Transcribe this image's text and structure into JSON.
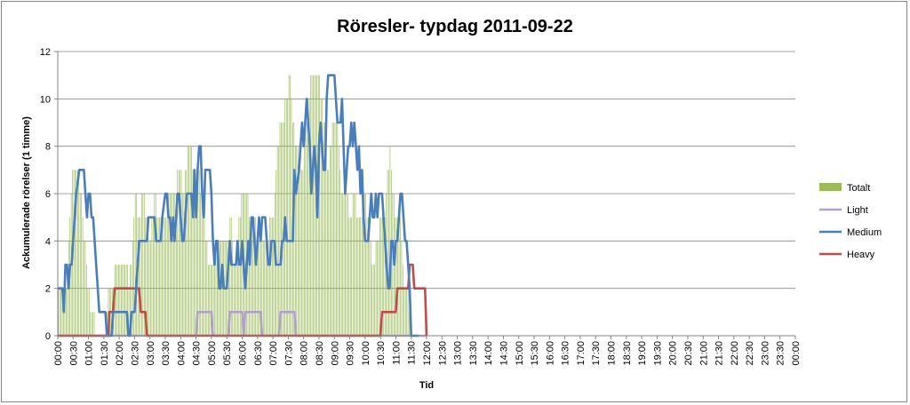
{
  "chart_data": {
    "type": "line",
    "title": "Röresler- typdag 2011-09-22",
    "xlabel": "Tid",
    "ylabel": "Ackumulerade rörelser (1 timme)",
    "ylim": [
      0,
      12
    ],
    "yticks": [
      "0",
      "2",
      "4",
      "6",
      "8",
      "10",
      "12"
    ],
    "grid": true,
    "legend_position": "right",
    "x_ticks": [
      "00:00",
      "00:30",
      "01:00",
      "01:30",
      "02:00",
      "02:30",
      "03:00",
      "03:30",
      "04:00",
      "04:30",
      "05:00",
      "05:30",
      "06:00",
      "06:30",
      "07:00",
      "07:30",
      "08:00",
      "08:30",
      "09:00",
      "09:30",
      "10:00",
      "10:30",
      "11:00",
      "11:30",
      "12:00",
      "12:30",
      "13:00",
      "13:30",
      "14:00",
      "14:30",
      "15:00",
      "15:30",
      "16:00",
      "16:30",
      "17:00",
      "17:30",
      "18:00",
      "18:30",
      "19:00",
      "19:30",
      "20:00",
      "20:30",
      "21:00",
      "21:30",
      "22:00",
      "22:30",
      "23:00",
      "23:30",
      "00:00"
    ],
    "series": [
      {
        "name": "Totalt",
        "kind": "bar",
        "color": "#9bbb59",
        "points": [
          [
            0,
            2
          ],
          [
            0.5,
            2
          ],
          [
            1,
            7
          ],
          [
            1.3,
            7
          ],
          [
            1.5,
            6
          ],
          [
            2,
            2
          ],
          [
            2.2,
            1
          ],
          [
            2.4,
            1
          ],
          [
            2.5,
            0
          ],
          [
            3.1,
            0
          ],
          [
            3.3,
            2
          ],
          [
            3.6,
            2
          ],
          [
            3.75,
            3
          ],
          [
            4,
            3
          ],
          [
            4.5,
            3
          ],
          [
            4.6,
            2
          ],
          [
            4.7,
            3
          ],
          [
            4.9,
            4
          ],
          [
            5,
            6
          ],
          [
            5.3,
            5
          ],
          [
            5.5,
            6
          ],
          [
            6,
            4
          ],
          [
            6.3,
            6
          ],
          [
            6.5,
            5
          ],
          [
            7,
            5
          ],
          [
            7.3,
            6
          ],
          [
            7.5,
            6
          ],
          [
            8,
            7
          ],
          [
            8.2,
            6
          ],
          [
            8.5,
            8
          ],
          [
            9,
            7
          ],
          [
            9.2,
            7
          ],
          [
            9.5,
            5
          ],
          [
            9.8,
            3
          ],
          [
            10,
            3
          ],
          [
            10.5,
            4
          ],
          [
            11,
            4
          ],
          [
            11.3,
            5
          ],
          [
            11.5,
            3
          ],
          [
            12,
            6
          ],
          [
            12.3,
            6
          ],
          [
            12.6,
            4
          ],
          [
            12.8,
            5
          ],
          [
            13,
            4
          ],
          [
            13.5,
            4
          ],
          [
            14,
            5
          ],
          [
            14.3,
            8
          ],
          [
            14.6,
            9
          ],
          [
            14.9,
            10
          ],
          [
            15.1,
            11
          ],
          [
            15.3,
            9
          ],
          [
            15.5,
            8
          ],
          [
            15.9,
            7
          ],
          [
            16.2,
            9
          ],
          [
            16.5,
            11
          ],
          [
            16.9,
            11
          ],
          [
            17.2,
            10
          ],
          [
            17.6,
            7
          ],
          [
            17.9,
            9
          ],
          [
            18.2,
            9
          ],
          [
            18.5,
            6
          ],
          [
            18.8,
            6
          ],
          [
            19,
            5
          ],
          [
            19.3,
            6
          ],
          [
            19.6,
            5
          ],
          [
            20,
            6
          ],
          [
            20.3,
            4
          ],
          [
            20.5,
            3
          ],
          [
            20.8,
            4
          ],
          [
            21,
            5
          ],
          [
            21.3,
            5
          ],
          [
            21.6,
            8
          ],
          [
            21.8,
            6
          ],
          [
            22,
            5
          ],
          [
            22.3,
            5
          ],
          [
            22.5,
            2
          ],
          [
            22.8,
            2
          ],
          [
            23,
            0
          ],
          [
            23.5,
            0
          ],
          [
            24,
            0
          ]
        ]
      },
      {
        "name": "Light",
        "kind": "line",
        "color": "#b3a2c7",
        "points": [
          [
            0,
            0
          ],
          [
            9.0,
            0
          ],
          [
            9.1,
            1
          ],
          [
            10.0,
            1
          ],
          [
            10.1,
            0
          ],
          [
            11.1,
            0
          ],
          [
            11.2,
            1
          ],
          [
            12.0,
            1
          ],
          [
            12.1,
            0
          ],
          [
            12.2,
            1
          ],
          [
            13.2,
            1
          ],
          [
            13.3,
            0
          ],
          [
            14.4,
            0
          ],
          [
            14.5,
            1
          ],
          [
            15.4,
            1
          ],
          [
            15.5,
            0
          ],
          [
            24,
            0
          ]
        ]
      },
      {
        "name": "Medium",
        "kind": "line",
        "color": "#4a7ebb",
        "points": [
          [
            0,
            2
          ],
          [
            0.3,
            2
          ],
          [
            0.4,
            1
          ],
          [
            0.5,
            3
          ],
          [
            0.6,
            3
          ],
          [
            0.7,
            2
          ],
          [
            0.8,
            3
          ],
          [
            0.9,
            3
          ],
          [
            1.0,
            4
          ],
          [
            1.1,
            5
          ],
          [
            1.2,
            6
          ],
          [
            1.4,
            7
          ],
          [
            1.7,
            7
          ],
          [
            1.8,
            6
          ],
          [
            1.9,
            5
          ],
          [
            2.0,
            6
          ],
          [
            2.1,
            6
          ],
          [
            2.2,
            5
          ],
          [
            2.3,
            5
          ],
          [
            2.5,
            3
          ],
          [
            2.6,
            2
          ],
          [
            2.7,
            1
          ],
          [
            3.1,
            1
          ],
          [
            3.2,
            0
          ],
          [
            3.5,
            0
          ],
          [
            3.6,
            1
          ],
          [
            4.5,
            1
          ],
          [
            4.6,
            0
          ],
          [
            4.7,
            0
          ],
          [
            4.8,
            1
          ],
          [
            5.0,
            1
          ],
          [
            5.1,
            2
          ],
          [
            5.2,
            3
          ],
          [
            5.3,
            4
          ],
          [
            5.8,
            4
          ],
          [
            5.9,
            5
          ],
          [
            6.3,
            5
          ],
          [
            6.4,
            4
          ],
          [
            6.7,
            4
          ],
          [
            6.8,
            5
          ],
          [
            7.0,
            6
          ],
          [
            7.1,
            6
          ],
          [
            7.2,
            5
          ],
          [
            7.3,
            5
          ],
          [
            7.4,
            4
          ],
          [
            7.5,
            5
          ],
          [
            7.6,
            4
          ],
          [
            7.7,
            5
          ],
          [
            7.8,
            6
          ],
          [
            7.9,
            6
          ],
          [
            8.0,
            5
          ],
          [
            8.1,
            4
          ],
          [
            8.2,
            4
          ],
          [
            8.3,
            5
          ],
          [
            8.4,
            6
          ],
          [
            8.7,
            6
          ],
          [
            8.8,
            5
          ],
          [
            8.9,
            7
          ],
          [
            9.0,
            5
          ],
          [
            9.1,
            7
          ],
          [
            9.2,
            8
          ],
          [
            9.3,
            8
          ],
          [
            9.4,
            6
          ],
          [
            9.5,
            5
          ],
          [
            9.6,
            7
          ],
          [
            9.9,
            7
          ],
          [
            10.0,
            6
          ],
          [
            10.1,
            4
          ],
          [
            10.2,
            3
          ],
          [
            10.3,
            4
          ],
          [
            10.4,
            4
          ],
          [
            10.5,
            2
          ],
          [
            10.6,
            2
          ],
          [
            10.7,
            3
          ],
          [
            10.8,
            2
          ],
          [
            11.0,
            2
          ],
          [
            11.1,
            3
          ],
          [
            11.2,
            4
          ],
          [
            11.3,
            3
          ],
          [
            11.6,
            3
          ],
          [
            11.7,
            4
          ],
          [
            11.8,
            3
          ],
          [
            11.9,
            3
          ],
          [
            12.0,
            4
          ],
          [
            12.1,
            3
          ],
          [
            12.2,
            2
          ],
          [
            12.3,
            3
          ],
          [
            12.4,
            4
          ],
          [
            12.5,
            3
          ],
          [
            12.6,
            5
          ],
          [
            12.7,
            5
          ],
          [
            12.8,
            4
          ],
          [
            12.9,
            3
          ],
          [
            13.0,
            4
          ],
          [
            13.1,
            5
          ],
          [
            13.2,
            4
          ],
          [
            13.3,
            5
          ],
          [
            13.4,
            5
          ],
          [
            13.5,
            5
          ],
          [
            13.6,
            4
          ],
          [
            13.7,
            3
          ],
          [
            13.8,
            3
          ],
          [
            13.9,
            4
          ],
          [
            14.1,
            4
          ],
          [
            14.2,
            3
          ],
          [
            14.5,
            3
          ],
          [
            14.6,
            4
          ],
          [
            14.7,
            4
          ],
          [
            14.8,
            5
          ],
          [
            14.9,
            4
          ],
          [
            15.3,
            4
          ],
          [
            15.4,
            7
          ],
          [
            15.5,
            6
          ],
          [
            15.7,
            7
          ],
          [
            15.8,
            8
          ],
          [
            15.9,
            9
          ],
          [
            16.0,
            8
          ],
          [
            16.1,
            9
          ],
          [
            16.2,
            10
          ],
          [
            16.3,
            9
          ],
          [
            16.4,
            8
          ],
          [
            16.5,
            6
          ],
          [
            16.6,
            7
          ],
          [
            16.7,
            8
          ],
          [
            16.8,
            7
          ],
          [
            16.9,
            5
          ],
          [
            17.0,
            8
          ],
          [
            17.1,
            9
          ],
          [
            17.2,
            8
          ],
          [
            17.3,
            7
          ],
          [
            17.4,
            7
          ],
          [
            17.5,
            10
          ],
          [
            17.6,
            11
          ],
          [
            18.0,
            11
          ],
          [
            18.1,
            10
          ],
          [
            18.2,
            9
          ],
          [
            18.4,
            9
          ],
          [
            18.5,
            10
          ],
          [
            18.6,
            8
          ],
          [
            18.7,
            6
          ],
          [
            18.8,
            7
          ],
          [
            18.9,
            8
          ],
          [
            19.0,
            8
          ],
          [
            19.1,
            9
          ],
          [
            19.2,
            8
          ],
          [
            19.3,
            9
          ],
          [
            19.4,
            8
          ],
          [
            19.5,
            7
          ],
          [
            19.6,
            8
          ],
          [
            19.7,
            6
          ],
          [
            19.8,
            7
          ],
          [
            19.9,
            5
          ],
          [
            20.0,
            4
          ],
          [
            20.2,
            4
          ],
          [
            20.3,
            5
          ],
          [
            20.4,
            6
          ],
          [
            20.5,
            5
          ],
          [
            20.6,
            5
          ],
          [
            20.7,
            6
          ],
          [
            20.8,
            5
          ],
          [
            20.9,
            6
          ],
          [
            21.1,
            6
          ],
          [
            21.2,
            5
          ],
          [
            21.3,
            4
          ],
          [
            21.4,
            3
          ],
          [
            21.5,
            2
          ],
          [
            21.6,
            2
          ],
          [
            21.7,
            4
          ],
          [
            21.8,
            4
          ],
          [
            21.9,
            3
          ],
          [
            22.0,
            4
          ],
          [
            22.1,
            4
          ],
          [
            22.2,
            5
          ],
          [
            22.3,
            6
          ],
          [
            22.4,
            6
          ],
          [
            22.5,
            5
          ],
          [
            22.6,
            4
          ],
          [
            22.7,
            4
          ],
          [
            22.8,
            3
          ],
          [
            22.9,
            2
          ],
          [
            23.0,
            0
          ],
          [
            23.5,
            0
          ]
        ]
      },
      {
        "name": "Heavy",
        "kind": "line",
        "color": "#be4b48",
        "points": [
          [
            0,
            0
          ],
          [
            3.3,
            0
          ],
          [
            3.35,
            1
          ],
          [
            3.6,
            1
          ],
          [
            3.7,
            2
          ],
          [
            5.3,
            2
          ],
          [
            5.4,
            1
          ],
          [
            5.7,
            1
          ],
          [
            5.8,
            0
          ],
          [
            21.0,
            0
          ],
          [
            21.1,
            1
          ],
          [
            22.0,
            1
          ],
          [
            22.1,
            2
          ],
          [
            22.8,
            2
          ],
          [
            22.9,
            3
          ],
          [
            23.1,
            3
          ],
          [
            23.2,
            2
          ],
          [
            23.9,
            2
          ],
          [
            24.0,
            0
          ]
        ]
      }
    ]
  }
}
